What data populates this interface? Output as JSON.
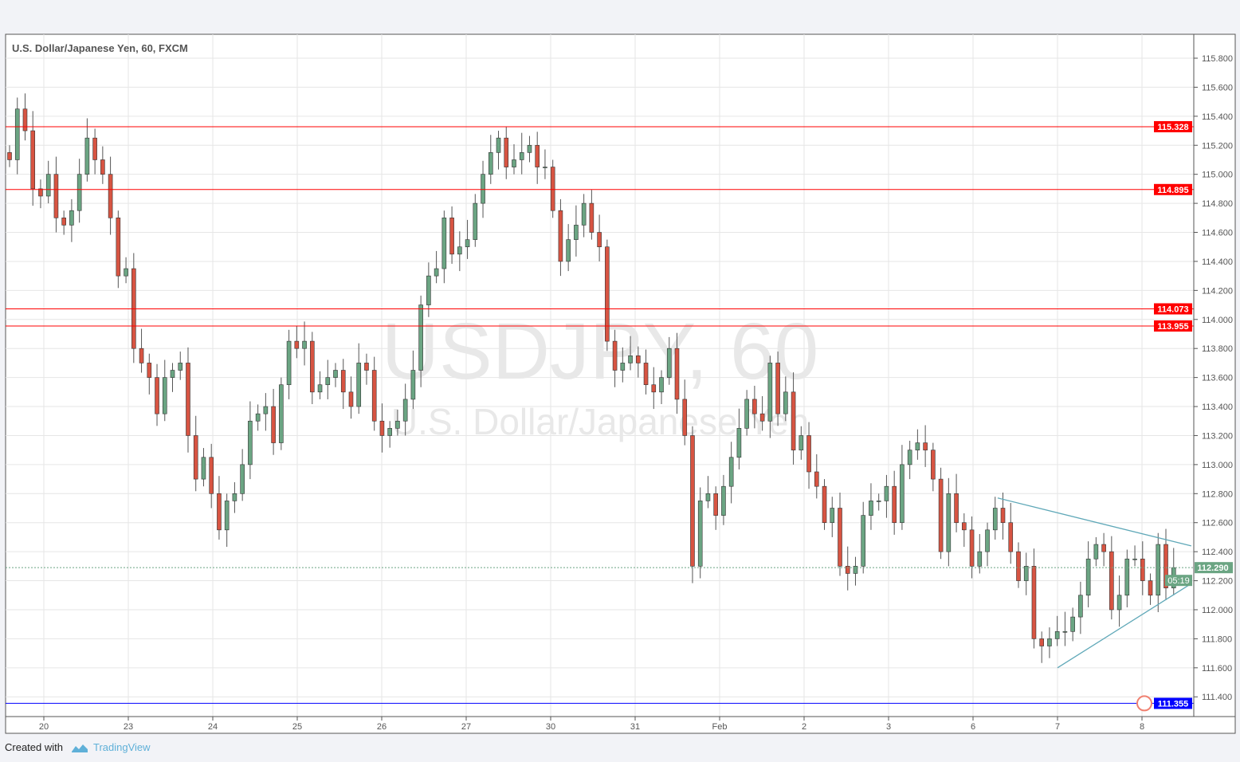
{
  "chart_data": {
    "type": "candlestick",
    "title": "U.S. Dollar/Japanese Yen, 60, FXCM",
    "watermark": {
      "symbol": "USDJPY, 60",
      "name": "U.S. Dollar/Japanese Yen"
    },
    "x_ticks": [
      "20",
      "23",
      "24",
      "25",
      "26",
      "27",
      "30",
      "31",
      "Feb",
      "2",
      "3",
      "6",
      "7",
      "8"
    ],
    "first_bar": {
      "day": "19",
      "hour": 13
    },
    "last_bar": {
      "day": "8",
      "hour": 9
    },
    "y_ticks": [
      "111.400",
      "111.600",
      "111.800",
      "112.000",
      "112.200",
      "112.400",
      "112.600",
      "112.800",
      "113.000",
      "113.200",
      "113.400",
      "113.600",
      "113.800",
      "114.000",
      "114.200",
      "114.400",
      "114.600",
      "114.800",
      "115.000",
      "115.200",
      "115.400",
      "115.600",
      "115.800"
    ],
    "ylim": [
      111.28,
      116.0
    ],
    "grid": true,
    "closes": [
      115.1,
      115.45,
      115.3,
      114.9,
      114.85,
      115.0,
      114.7,
      114.65,
      114.75,
      115.0,
      115.25,
      115.1,
      115.0,
      114.7,
      114.3,
      114.35,
      113.8,
      113.7,
      113.6,
      113.35,
      113.6,
      113.65,
      113.7,
      113.2,
      112.9,
      113.05,
      112.8,
      112.55,
      112.75,
      112.8,
      113.0,
      113.3,
      113.35,
      113.4,
      113.15,
      113.55,
      113.85,
      113.8,
      113.85,
      113.5,
      113.55,
      113.6,
      113.65,
      113.5,
      113.4,
      113.7,
      113.65,
      113.3,
      113.2,
      113.25,
      113.3,
      113.45,
      113.65,
      114.1,
      114.3,
      114.35,
      114.7,
      114.45,
      114.5,
      114.55,
      114.8,
      115.0,
      115.15,
      115.25,
      115.05,
      115.1,
      115.15,
      115.2,
      115.05,
      115.05,
      114.75,
      114.4,
      114.55,
      114.65,
      114.8,
      114.6,
      114.5,
      113.85,
      113.65,
      113.7,
      113.75,
      113.7,
      113.55,
      113.5,
      113.6,
      113.8,
      113.45,
      113.2,
      112.3,
      112.75,
      112.8,
      112.65,
      112.85,
      113.05,
      113.25,
      113.45,
      113.35,
      113.3,
      113.7,
      113.35,
      113.5,
      113.1,
      113.2,
      112.95,
      112.85,
      112.6,
      112.7,
      112.3,
      112.25,
      112.3,
      112.65,
      112.75,
      112.75,
      112.85,
      112.6,
      113.0,
      113.1,
      113.15,
      113.1,
      112.9,
      112.4,
      112.8,
      112.6,
      112.55,
      112.3,
      112.4,
      112.55,
      112.7,
      112.6,
      112.4,
      112.2,
      112.3,
      111.8,
      111.75,
      111.8,
      111.85,
      111.85,
      111.95,
      112.1,
      112.35,
      112.45,
      112.4,
      112.0,
      112.1,
      112.35,
      112.35,
      112.2,
      112.1,
      112.45,
      112.15,
      112.29
    ],
    "levels": [
      {
        "price": 115.328,
        "label": "115.328",
        "color": "#ff0000"
      },
      {
        "price": 114.895,
        "label": "114.895",
        "color": "#ff0000"
      },
      {
        "price": 114.073,
        "label": "114.073",
        "color": "#ff0000"
      },
      {
        "price": 113.955,
        "label": "113.955",
        "color": "#ff0000"
      },
      {
        "price": 111.355,
        "label": "111.355",
        "color": "#0000ff"
      }
    ],
    "last_price": {
      "price": 112.29,
      "label": "112.290",
      "countdown": "05:19",
      "color": "#6ba583"
    },
    "trendlines": [
      {
        "from": {
          "day": "6",
          "hour": 7,
          "price": 112.77
        },
        "to": {
          "day": "8",
          "hour": 14,
          "price": 112.44
        }
      },
      {
        "from": {
          "day": "7",
          "hour": 0,
          "price": 111.6
        },
        "to": {
          "day": "8",
          "hour": 14,
          "price": 112.18
        }
      }
    ],
    "colors": {
      "up": "#6ba583",
      "down": "#d75442",
      "wick": "#555555",
      "trend": "#5fa8b8",
      "grid": "#e6e6e6"
    }
  },
  "footer": {
    "created_with": "Created with",
    "brand": "TradingView"
  }
}
